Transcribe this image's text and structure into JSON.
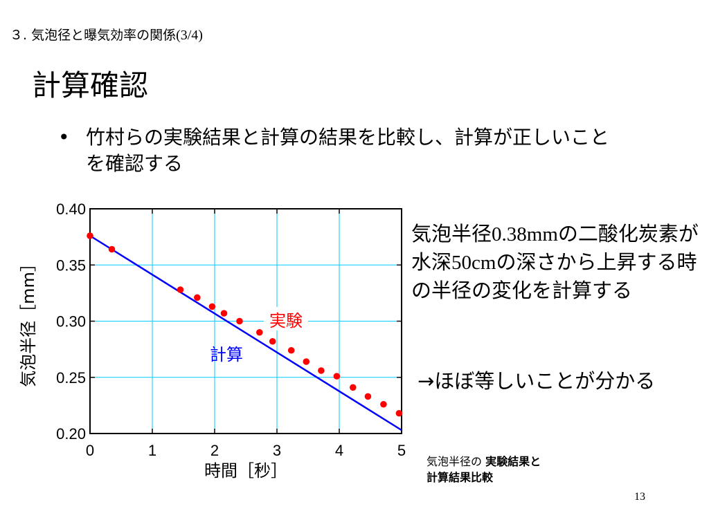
{
  "header": {
    "prefix": "３. 気泡径と曝気効率の関係",
    "fraction": "(3/4)"
  },
  "title": "計算確認",
  "bullet": {
    "dot": "•",
    "text": "竹村らの実験結果と計算の結果を比較し、計算が正しいことを確認する"
  },
  "description": {
    "lead": "気泡半径",
    "radius": "0.38mm",
    "mid": "の二酸化炭素が水深",
    "depth": "50cm",
    "tail": "の深さから上昇する時の半径の変化を計算する"
  },
  "conclusion": "→ほぼ等しいことが分かる",
  "caption": {
    "line1_normal": "気泡半径の ",
    "line1_bold": "実験結果と",
    "line2": "計算結果比較"
  },
  "page_number": "13",
  "colors": {
    "experiment": "#ff0000",
    "calculation": "#0000ff",
    "grid": "#00ccff"
  },
  "chart_data": {
    "type": "scatter",
    "xlabel": "時間［秒］",
    "ylabel": "気泡半径［mm］",
    "xlim": [
      0,
      5
    ],
    "ylim": [
      0.2,
      0.4
    ],
    "x_ticks": [
      "0",
      "1",
      "2",
      "3",
      "4",
      "5"
    ],
    "y_ticks": [
      "0.20",
      "0.25",
      "0.30",
      "0.35",
      "0.40"
    ],
    "grid": true,
    "series": [
      {
        "name": "実験",
        "kind": "scatter",
        "color": "#ff0000",
        "x": [
          0,
          0.35,
          1.45,
          1.72,
          1.96,
          2.15,
          2.4,
          2.72,
          2.93,
          3.23,
          3.47,
          3.71,
          3.96,
          4.22,
          4.46,
          4.71,
          4.96
        ],
        "y": [
          0.376,
          0.364,
          0.328,
          0.321,
          0.313,
          0.307,
          0.3,
          0.29,
          0.282,
          0.274,
          0.264,
          0.256,
          0.251,
          0.241,
          0.233,
          0.226,
          0.218
        ]
      },
      {
        "name": "計算",
        "kind": "line",
        "color": "#0000ff",
        "x": [
          0,
          5
        ],
        "y": [
          0.376,
          0.203
        ]
      }
    ]
  }
}
